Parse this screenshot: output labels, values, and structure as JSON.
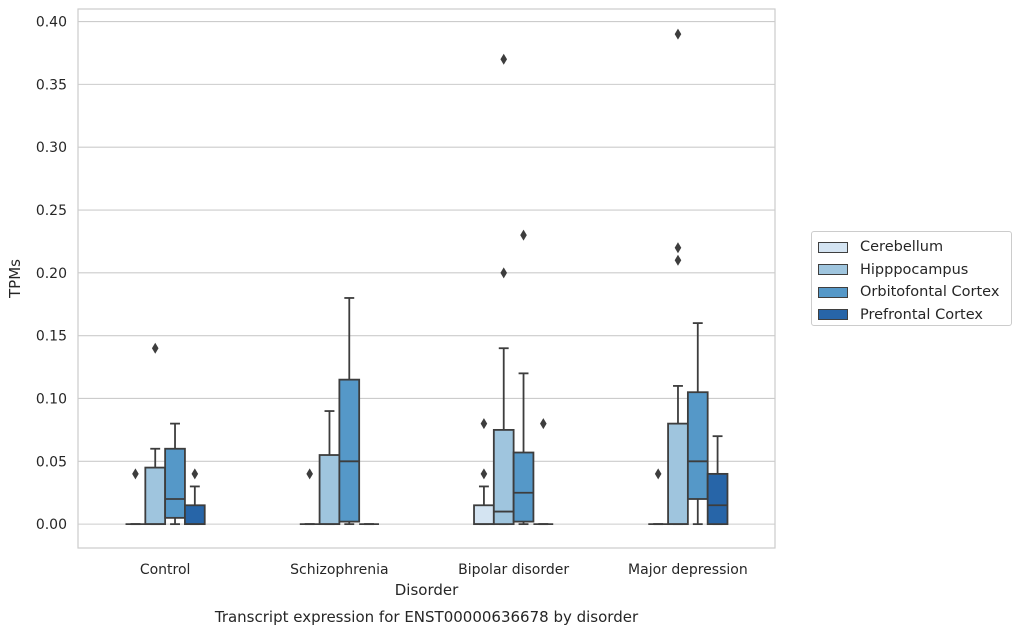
{
  "chart_data": {
    "type": "box",
    "xlabel": "Disorder",
    "ylabel": "TPMs",
    "caption": "Transcript expression for ENST00000636678 by disorder",
    "categories": [
      "Control",
      "Schizophrenia",
      "Bipolar disorder",
      "Major depression"
    ],
    "ylim": [
      -0.019,
      0.41
    ],
    "yticks": [
      "0.00",
      "0.05",
      "0.10",
      "0.15",
      "0.20",
      "0.25",
      "0.30",
      "0.35",
      "0.40"
    ],
    "ytick_values": [
      0,
      0.05,
      0.1,
      0.15,
      0.2,
      0.25,
      0.3,
      0.35,
      0.4
    ],
    "grid": true,
    "legend_position": "right",
    "series": [
      {
        "name": "Cerebellum",
        "color": "#d4e4f2",
        "boxes": [
          {
            "q1": 0,
            "median": 0,
            "q3": 0,
            "whisker_low": 0,
            "whisker_high": 0,
            "outliers": [
              0.04
            ]
          },
          {
            "q1": 0,
            "median": 0,
            "q3": 0,
            "whisker_low": 0,
            "whisker_high": 0,
            "outliers": [
              0.04
            ]
          },
          {
            "q1": 0,
            "median": 0,
            "q3": 0.015,
            "whisker_low": 0,
            "whisker_high": 0.03,
            "outliers": [
              0.04,
              0.08
            ]
          },
          {
            "q1": 0,
            "median": 0,
            "q3": 0,
            "whisker_low": 0,
            "whisker_high": 0,
            "outliers": [
              0.04
            ]
          }
        ]
      },
      {
        "name": "Hipppocampus",
        "color": "#9fc5de",
        "boxes": [
          {
            "q1": 0,
            "median": 0,
            "q3": 0.045,
            "whisker_low": 0,
            "whisker_high": 0.06,
            "outliers": [
              0.14
            ]
          },
          {
            "q1": 0,
            "median": 0,
            "q3": 0.055,
            "whisker_low": 0,
            "whisker_high": 0.09,
            "outliers": []
          },
          {
            "q1": 0,
            "median": 0.01,
            "q3": 0.075,
            "whisker_low": 0,
            "whisker_high": 0.14,
            "outliers": [
              0.2,
              0.37
            ]
          },
          {
            "q1": 0,
            "median": 0,
            "q3": 0.08,
            "whisker_low": 0,
            "whisker_high": 0.11,
            "outliers": [
              0.21,
              0.22,
              0.39
            ]
          }
        ]
      },
      {
        "name": "Orbitofontal Cortex",
        "color": "#5598c8",
        "boxes": [
          {
            "q1": 0.005,
            "median": 0.02,
            "q3": 0.06,
            "whisker_low": 0,
            "whisker_high": 0.08,
            "outliers": []
          },
          {
            "q1": 0.002,
            "median": 0.05,
            "q3": 0.115,
            "whisker_low": 0,
            "whisker_high": 0.18,
            "outliers": []
          },
          {
            "q1": 0.002,
            "median": 0.025,
            "q3": 0.057,
            "whisker_low": 0,
            "whisker_high": 0.12,
            "outliers": [
              0.23
            ]
          },
          {
            "q1": 0.02,
            "median": 0.05,
            "q3": 0.105,
            "whisker_low": 0,
            "whisker_high": 0.16,
            "outliers": []
          }
        ]
      },
      {
        "name": "Prefrontal Cortex",
        "color": "#2765a8",
        "boxes": [
          {
            "q1": 0,
            "median": 0,
            "q3": 0.015,
            "whisker_low": 0,
            "whisker_high": 0.03,
            "outliers": [
              0.04
            ]
          },
          {
            "q1": 0,
            "median": 0,
            "q3": 0,
            "whisker_low": 0,
            "whisker_high": 0,
            "outliers": []
          },
          {
            "q1": 0,
            "median": 0,
            "q3": 0,
            "whisker_low": 0,
            "whisker_high": 0,
            "outliers": [
              0.08
            ]
          },
          {
            "q1": 0,
            "median": 0.015,
            "q3": 0.04,
            "whisker_low": 0,
            "whisker_high": 0.07,
            "outliers": []
          }
        ]
      }
    ]
  }
}
